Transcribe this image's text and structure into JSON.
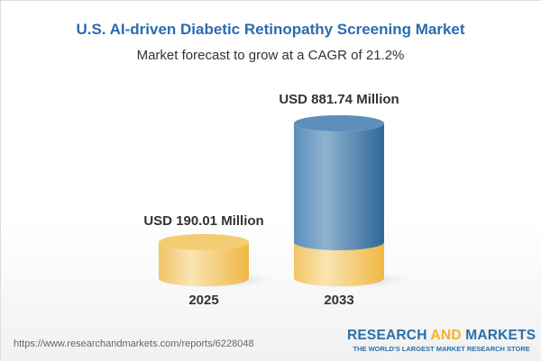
{
  "title": "U.S. AI-driven Diabetic Retinopathy Screening Market",
  "subtitle": "Market forecast to grow at a CAGR of 21.2%",
  "chart_data": {
    "type": "bar",
    "style": "3d-cylinder",
    "categories": [
      "2025",
      "2033"
    ],
    "values": [
      190.01,
      881.74
    ],
    "data_labels": [
      "USD 190.01 Million",
      "USD 881.74 Million"
    ],
    "unit": "USD Million",
    "colors": {
      "base": "#f2c14e",
      "growth": "#3f78a8"
    },
    "grid": false
  },
  "footer": {
    "url": "https://www.researchandmarkets.com/reports/6228048",
    "logo_word1": "RESEARCH",
    "logo_word2": "AND",
    "logo_word3": "MARKETS",
    "logo_tagline": "THE WORLD'S LARGEST MARKET RESEARCH STORE"
  }
}
